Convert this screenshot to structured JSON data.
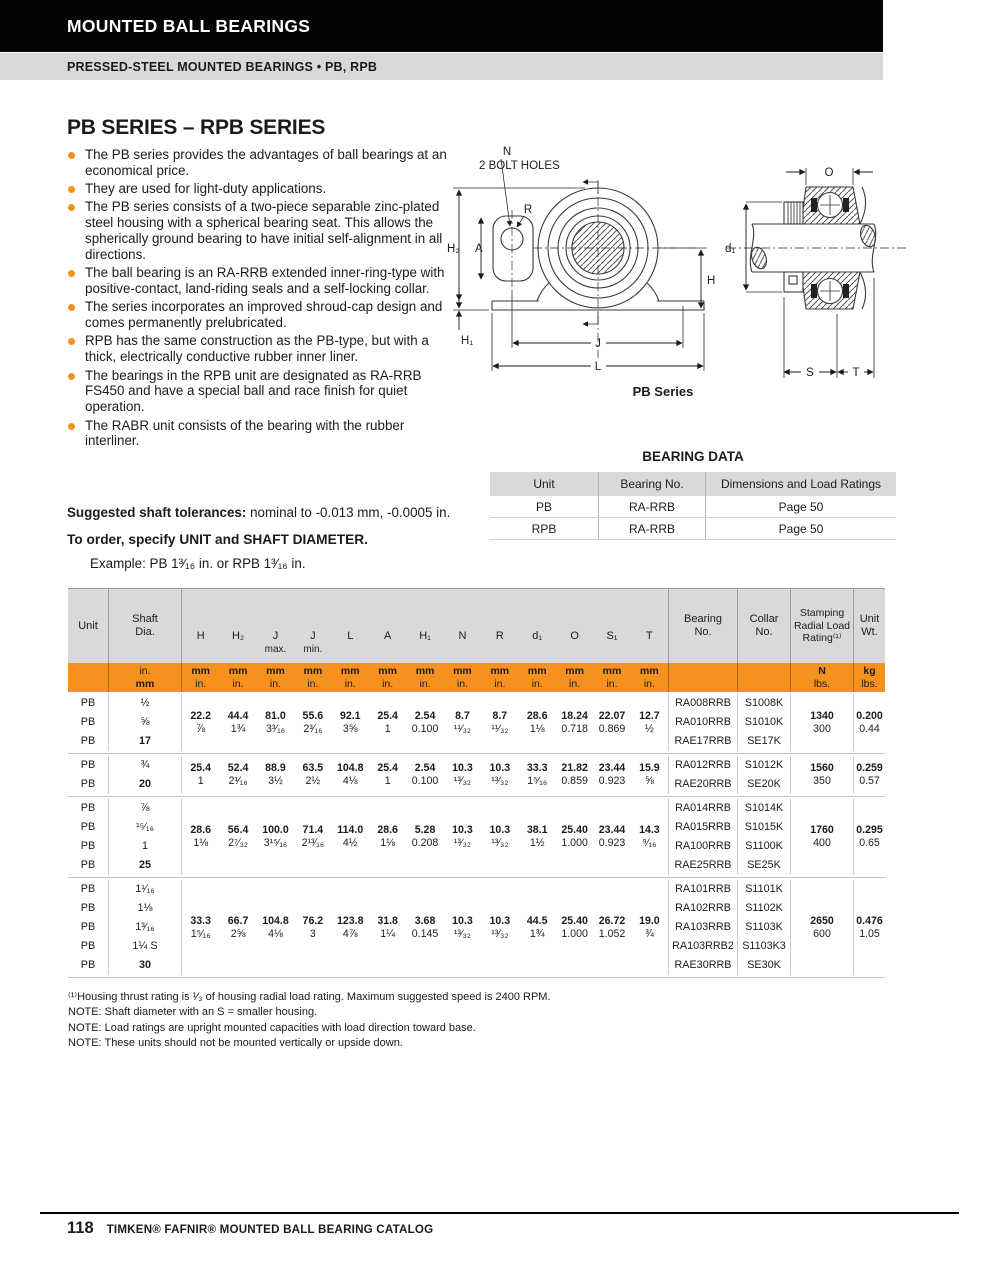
{
  "colors": {
    "accent_orange": "#f5911e",
    "band_gray": "#d8d9db",
    "bar_black": "#050505"
  },
  "masthead": {
    "section": "MOUNTED BALL BEARINGS",
    "subsection": "PRESSED-STEEL MOUNTED BEARINGS • PB, RPB"
  },
  "intro": {
    "title": "PB SERIES – RPB SERIES",
    "bullets": [
      "The PB series provides the advantages of ball bearings at an economical price.",
      "They are used for light-duty applications.",
      "The PB series consists of a two-piece separable zinc-plated steel housing with a spherical bearing seat. This allows the spherically ground bearing to have initial self-alignment in all directions.",
      "The ball bearing is an RA-RRB extended inner-ring-type with positive-contact, land-riding seals and a self-locking collar.",
      "The series incorporates an improved shroud-cap design and comes permanently prelubricated.",
      "RPB has the same construction as the PB-type, but with a thick, electrically conductive rubber inner liner.",
      "The bearings in the RPB unit are designated as RA-RRB FS450 and have a special ball and race finish for quiet operation.",
      "The RABR unit consists of the bearing with the rubber interliner."
    ],
    "tolerances_label": "Suggested shaft tolerances:",
    "tolerances_text": " nominal to -0.013 mm, -0.0005 in.",
    "order_line": "To order, specify UNIT and SHAFT DIAMETER.",
    "order_example": "Example: PB 1³⁄₁₆ in. or RPB 1³⁄₁₆ in."
  },
  "diagrams": {
    "front_view": {
      "n_label": "N",
      "bolt_holes_label": "2 BOLT HOLES",
      "r_label": "R",
      "h2_label": "H₂",
      "a_label": "A",
      "h1_label": "H₁",
      "h_label": "H",
      "j_label": "J",
      "l_label": "L",
      "caption": "PB Series"
    },
    "side_view": {
      "o_label": "O",
      "d1_label": "d₁",
      "s_label": "S",
      "t_label": "T"
    }
  },
  "bearing_data": {
    "title": "BEARING DATA",
    "headers": [
      "Unit",
      "Bearing No.",
      "Dimensions and Load Ratings"
    ],
    "rows": [
      [
        "PB",
        "RA-RRB",
        "Page 50"
      ],
      [
        "RPB",
        "RA-RRB",
        "Page 50"
      ]
    ]
  },
  "main_table": {
    "unit_header": "Unit",
    "shaft_header": "Shaft Dia.",
    "dim_cols": [
      {
        "label": "H",
        "sub": ""
      },
      {
        "label": "H₂",
        "sub": ""
      },
      {
        "label": "J",
        "sub": "max."
      },
      {
        "label": "J",
        "sub": "min."
      },
      {
        "label": "L",
        "sub": ""
      },
      {
        "label": "A",
        "sub": ""
      },
      {
        "label": "H₁",
        "sub": ""
      },
      {
        "label": "N",
        "sub": ""
      },
      {
        "label": "R",
        "sub": ""
      },
      {
        "label": "d₁",
        "sub": ""
      },
      {
        "label": "O",
        "sub": ""
      },
      {
        "label": "S₁",
        "sub": ""
      },
      {
        "label": "T",
        "sub": ""
      }
    ],
    "bearing_header": "Bearing No.",
    "collar_header": "Collar No.",
    "rating_header": "Stamping Radial Load Rating⁽¹⁾",
    "wt_header": "Unit Wt.",
    "units_band": {
      "shaft": [
        "in.",
        "mm"
      ],
      "dims": [
        "mm",
        "in."
      ],
      "rating": [
        "N",
        "lbs."
      ],
      "wt": [
        "kg",
        "lbs."
      ]
    },
    "groups": [
      {
        "rows": [
          {
            "unit": "PB",
            "dia": "½",
            "metric": false
          },
          {
            "unit": "PB",
            "dia": "⅝",
            "metric": false
          },
          {
            "unit": "PB",
            "dia": "17",
            "metric": true
          }
        ],
        "dims": [
          [
            "22.2",
            "⅞"
          ],
          [
            "44.4",
            "1¾"
          ],
          [
            "81.0",
            "3³⁄₁₆"
          ],
          [
            "55.6",
            "2³⁄₁₆"
          ],
          [
            "92.1",
            "3⅝"
          ],
          [
            "25.4",
            "1"
          ],
          [
            "2.54",
            "0.100"
          ],
          [
            "8.7",
            "¹¹⁄₃₂"
          ],
          [
            "8.7",
            "¹¹⁄₃₂"
          ],
          [
            "28.6",
            "1⅛"
          ],
          [
            "18.24",
            "0.718"
          ],
          [
            "22.07",
            "0.869"
          ],
          [
            "12.7",
            "½"
          ]
        ],
        "bearings": [
          [
            "RA008RRB",
            "S1008K"
          ],
          [
            "RA010RRB",
            "S1010K"
          ],
          [
            "RAE17RRB",
            "SE17K"
          ]
        ],
        "rating": [
          "1340",
          "300"
        ],
        "weight": [
          "0.200",
          "0.44"
        ]
      },
      {
        "rows": [
          {
            "unit": "PB",
            "dia": "¾",
            "metric": false
          },
          {
            "unit": "PB",
            "dia": "20",
            "metric": true
          }
        ],
        "dims": [
          [
            "25.4",
            "1"
          ],
          [
            "52.4",
            "2¹⁄₁₆"
          ],
          [
            "88.9",
            "3½"
          ],
          [
            "63.5",
            "2½"
          ],
          [
            "104.8",
            "4⅛"
          ],
          [
            "25.4",
            "1"
          ],
          [
            "2.54",
            "0.100"
          ],
          [
            "10.3",
            "¹³⁄₃₂"
          ],
          [
            "10.3",
            "¹³⁄₃₂"
          ],
          [
            "33.3",
            "1⁵⁄₁₆"
          ],
          [
            "21.82",
            "0.859"
          ],
          [
            "23.44",
            "0.923"
          ],
          [
            "15.9",
            "⅝"
          ]
        ],
        "bearings": [
          [
            "RA012RRB",
            "S1012K"
          ],
          [
            "RAE20RRB",
            "SE20K"
          ]
        ],
        "rating": [
          "1560",
          "350"
        ],
        "weight": [
          "0.259",
          "0.57"
        ]
      },
      {
        "rows": [
          {
            "unit": "PB",
            "dia": "⅞",
            "metric": false
          },
          {
            "unit": "PB",
            "dia": "¹⁵⁄₁₆",
            "metric": false
          },
          {
            "unit": "PB",
            "dia": "1",
            "metric": false
          },
          {
            "unit": "PB",
            "dia": "25",
            "metric": true
          }
        ],
        "dims": [
          [
            "28.6",
            "1⅛"
          ],
          [
            "56.4",
            "2⁷⁄₃₂"
          ],
          [
            "100.0",
            "3¹⁵⁄₁₆"
          ],
          [
            "71.4",
            "2¹³⁄₁₆"
          ],
          [
            "114.0",
            "4½"
          ],
          [
            "28.6",
            "1⅛"
          ],
          [
            "5.28",
            "0.208"
          ],
          [
            "10.3",
            "¹³⁄₃₂"
          ],
          [
            "10.3",
            "¹³⁄₃₂"
          ],
          [
            "38.1",
            "1½"
          ],
          [
            "25.40",
            "1.000"
          ],
          [
            "23.44",
            "0.923"
          ],
          [
            "14.3",
            "⁹⁄₁₆"
          ]
        ],
        "bearings": [
          [
            "RA014RRB",
            "S1014K"
          ],
          [
            "RA015RRB",
            "S1015K"
          ],
          [
            "RA100RRB",
            "S1100K"
          ],
          [
            "RAE25RRB",
            "SE25K"
          ]
        ],
        "rating": [
          "1760",
          "400"
        ],
        "weight": [
          "0.295",
          "0.65"
        ]
      },
      {
        "rows": [
          {
            "unit": "PB",
            "dia": "1¹⁄₁₆",
            "metric": false
          },
          {
            "unit": "PB",
            "dia": "1⅛",
            "metric": false
          },
          {
            "unit": "PB",
            "dia": "1³⁄₁₆",
            "metric": false
          },
          {
            "unit": "PB",
            "dia": "1¼ S",
            "metric": false
          },
          {
            "unit": "PB",
            "dia": "30",
            "metric": true
          }
        ],
        "dims": [
          [
            "33.3",
            "1⁵⁄₁₆"
          ],
          [
            "66.7",
            "2⅝"
          ],
          [
            "104.8",
            "4⅛"
          ],
          [
            "76.2",
            "3"
          ],
          [
            "123.8",
            "4⅞"
          ],
          [
            "31.8",
            "1¼"
          ],
          [
            "3.68",
            "0.145"
          ],
          [
            "10.3",
            "¹³⁄₃₂"
          ],
          [
            "10.3",
            "¹³⁄₃₂"
          ],
          [
            "44.5",
            "1¾"
          ],
          [
            "25.40",
            "1.000"
          ],
          [
            "26.72",
            "1.052"
          ],
          [
            "19.0",
            "¾"
          ]
        ],
        "bearings": [
          [
            "RA101RRB",
            "S1101K"
          ],
          [
            "RA102RRB",
            "S1102K"
          ],
          [
            "RA103RRB",
            "S1103K"
          ],
          [
            "RA103RRB2",
            "S1103K3"
          ],
          [
            "RAE30RRB",
            "SE30K"
          ]
        ],
        "rating": [
          "2650",
          "600"
        ],
        "weight": [
          "0.476",
          "1.05"
        ]
      }
    ]
  },
  "footnotes": [
    "⁽¹⁾Housing thrust rating is ¹⁄₃ of housing radial load rating. Maximum suggested speed is 2400 RPM.",
    "NOTE: Shaft diameter with an S = smaller housing.",
    "NOTE: Load ratings are upright mounted capacities with load direction toward base.",
    "NOTE: These units should not be mounted vertically or upside down."
  ],
  "footer": {
    "page_number": "118",
    "catalog_title": "TIMKEN® FAFNIR® MOUNTED BALL BEARING CATALOG"
  }
}
